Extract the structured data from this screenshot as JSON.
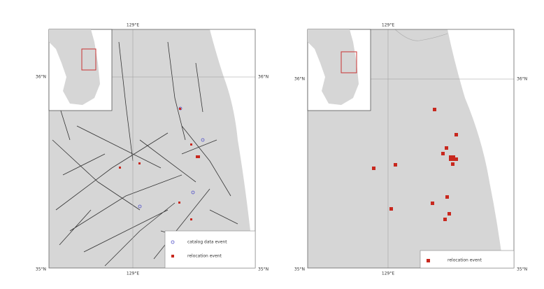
{
  "panels": [
    {
      "top_lon": "129°E",
      "bottom_lon": "129°E",
      "left_lat_top": "36°N",
      "right_lat_top": "36°N",
      "left_lat_bottom": "35°N",
      "right_lat_bottom": "35°N",
      "legend": [
        "catalog data event",
        "relocation event"
      ]
    },
    {
      "top_lon": "129°E",
      "bottom_lon": "129°E",
      "left_lat_top": "36°N",
      "right_lat_top": "36°N",
      "left_lat_bottom": "35°N",
      "right_lat_bottom": "35°N",
      "legend": [
        "relocation event"
      ]
    }
  ]
}
